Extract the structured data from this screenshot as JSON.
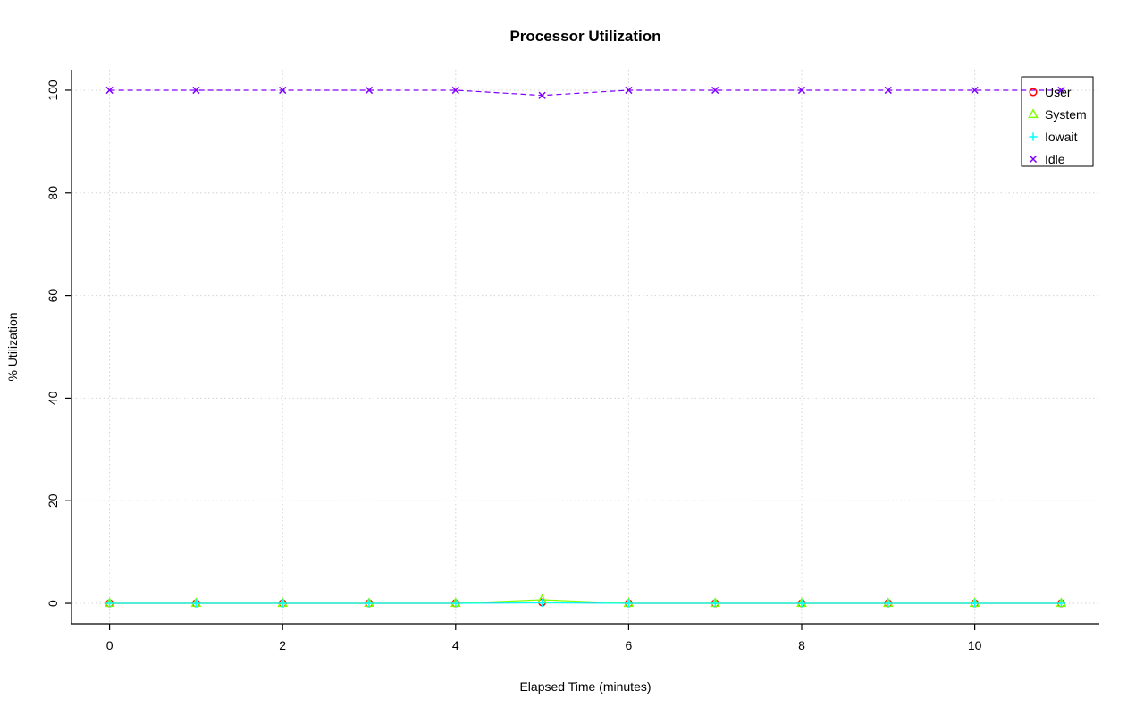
{
  "page": {
    "background": "#FFFFFF",
    "text_color": "#000000",
    "grid_color": "#D3D3D3"
  },
  "chart_data": {
    "type": "line",
    "title": "Processor Utilization",
    "xlabel": "Elapsed Time (minutes)",
    "ylabel": "% Utilization",
    "x": [
      0,
      1,
      2,
      3,
      4,
      5,
      6,
      7,
      8,
      9,
      10,
      11
    ],
    "xticks": [
      0,
      2,
      4,
      6,
      8,
      10
    ],
    "yticks": [
      0,
      20,
      40,
      60,
      80,
      100
    ],
    "xlim": [
      -0.44,
      11.44
    ],
    "ylim": [
      -4,
      104
    ],
    "grid": true,
    "legend_position": "top-right",
    "series": [
      {
        "name": "User",
        "color": "#FF0000",
        "marker": "circle",
        "values": [
          0,
          0,
          0,
          0,
          0,
          0.2,
          0,
          0,
          0,
          0,
          0,
          0
        ]
      },
      {
        "name": "System",
        "color": "#80FF00",
        "marker": "triangle",
        "values": [
          0,
          0,
          0,
          0,
          0,
          0.7,
          0,
          0,
          0,
          0,
          0,
          0
        ]
      },
      {
        "name": "Iowait",
        "color": "#00FFFF",
        "marker": "plus",
        "values": [
          0,
          0,
          0,
          0,
          0,
          0.1,
          0,
          0,
          0,
          0,
          0,
          0
        ]
      },
      {
        "name": "Idle",
        "color": "#8000FF",
        "marker": "x",
        "dash": [
          6,
          4
        ],
        "values": [
          100,
          100,
          100,
          100,
          100,
          99,
          100,
          100,
          100,
          100,
          100,
          100
        ]
      }
    ]
  }
}
